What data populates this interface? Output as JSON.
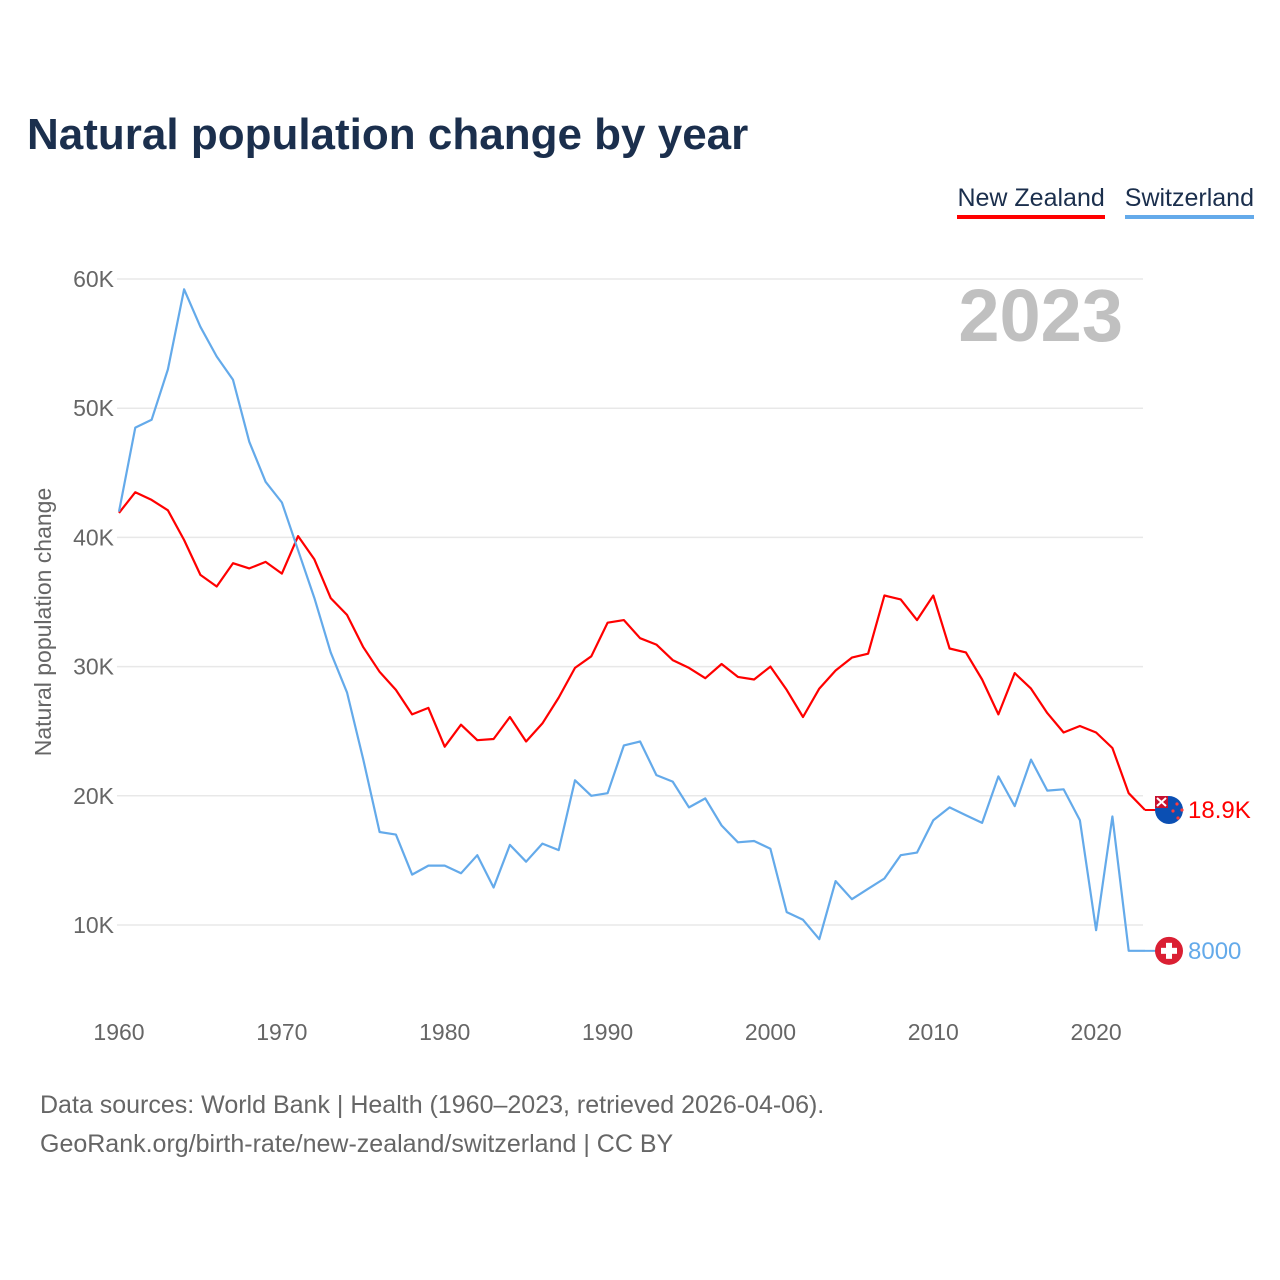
{
  "chart_data": {
    "type": "line",
    "title": "Natural population change by year",
    "xlabel": "",
    "ylabel": "Natural population change",
    "xlim": [
      1960,
      2023
    ],
    "ylim": [
      5000,
      62000
    ],
    "x_ticks": [
      1960,
      1970,
      1980,
      1990,
      2000,
      2010,
      2020
    ],
    "x_tick_labels": [
      "1960",
      "1970",
      "1980",
      "1990",
      "2000",
      "2010",
      "2020"
    ],
    "y_ticks": [
      10000,
      20000,
      30000,
      40000,
      50000,
      60000
    ],
    "y_tick_labels": [
      "10K",
      "20K",
      "30K",
      "40K",
      "50K",
      "60K"
    ],
    "grid": true,
    "legend_position": "top-right",
    "year_label": "2023",
    "x": [
      1960,
      1961,
      1962,
      1963,
      1964,
      1965,
      1966,
      1967,
      1968,
      1969,
      1970,
      1971,
      1972,
      1973,
      1974,
      1975,
      1976,
      1977,
      1978,
      1979,
      1980,
      1981,
      1982,
      1983,
      1984,
      1985,
      1986,
      1987,
      1988,
      1989,
      1990,
      1991,
      1992,
      1993,
      1994,
      1995,
      1996,
      1997,
      1998,
      1999,
      2000,
      2001,
      2002,
      2003,
      2004,
      2005,
      2006,
      2007,
      2008,
      2009,
      2010,
      2011,
      2012,
      2013,
      2014,
      2015,
      2016,
      2017,
      2018,
      2019,
      2020,
      2021,
      2022,
      2023
    ],
    "series": [
      {
        "name": "New Zealand",
        "color": "#ff0000",
        "end_label": "18.9K",
        "flag": "new-zealand",
        "values": [
          41900,
          43500,
          42900,
          42100,
          39800,
          37100,
          36200,
          38000,
          37600,
          38100,
          37200,
          40100,
          38300,
          35300,
          34000,
          31500,
          29600,
          28200,
          26300,
          26800,
          23800,
          25500,
          24300,
          24400,
          26100,
          24200,
          25600,
          27600,
          29900,
          30800,
          33400,
          33600,
          32200,
          31700,
          30500,
          29900,
          29100,
          30200,
          29200,
          29000,
          30000,
          28200,
          26100,
          28300,
          29700,
          30700,
          31000,
          35500,
          35200,
          33600,
          35500,
          31400,
          31100,
          29000,
          26300,
          29500,
          28300,
          26400,
          24900,
          25400,
          24900,
          23700,
          20200,
          18900
        ]
      },
      {
        "name": "Switzerland",
        "color": "#64aaea",
        "end_label": "8000",
        "flag": "switzerland",
        "values": [
          42000,
          48500,
          49100,
          53000,
          59200,
          56300,
          54000,
          52200,
          47400,
          44300,
          42700,
          39000,
          35300,
          31100,
          28000,
          22800,
          17200,
          17000,
          13900,
          14600,
          14600,
          14000,
          15400,
          12900,
          16200,
          14900,
          16300,
          15800,
          21200,
          20000,
          20200,
          23900,
          24200,
          21600,
          21100,
          19100,
          19800,
          17700,
          16400,
          16500,
          15900,
          11000,
          10400,
          8900,
          13400,
          12000,
          12800,
          13600,
          15400,
          15600,
          18100,
          19100,
          18500,
          17900,
          21500,
          19200,
          22800,
          20400,
          20500,
          18100,
          9600,
          18400,
          8000,
          8000
        ]
      }
    ]
  },
  "footer": {
    "line1": "Data sources: World Bank | Health (1960–2023, retrieved 2026-04-06).",
    "line2": "GeoRank.org/birth-rate/new-zealand/switzerland | CC BY"
  }
}
